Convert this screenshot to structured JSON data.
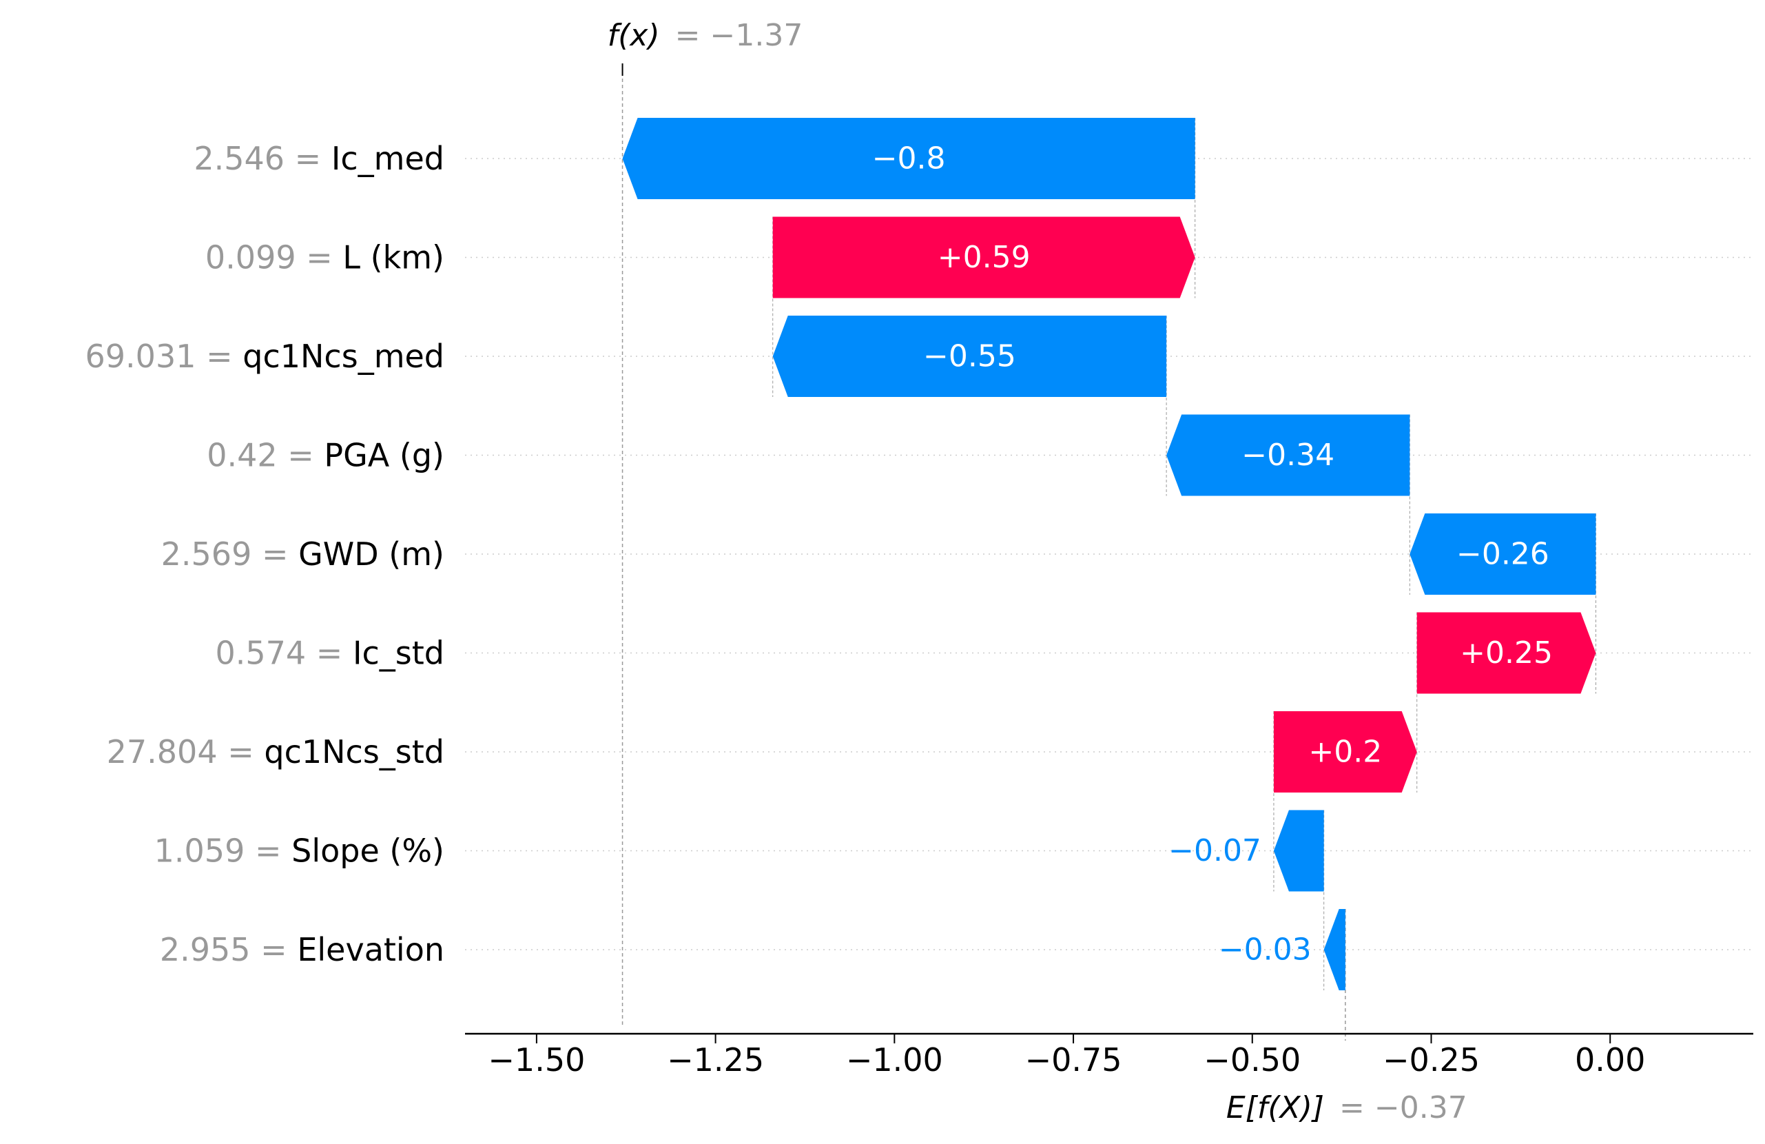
{
  "chart_data": {
    "type": "waterfall",
    "title": "",
    "xlabel": "",
    "ylabel": "",
    "xlim": [
      -1.6,
      0.2
    ],
    "xticks": [
      -1.5,
      -1.25,
      -1.0,
      -0.75,
      -0.5,
      -0.25,
      0.0
    ],
    "xtick_labels": [
      "−1.50",
      "−1.25",
      "−1.00",
      "−0.75",
      "−0.50",
      "−0.25",
      "0.00"
    ],
    "base_value": -0.37,
    "output_value": -1.37,
    "fx_label": "f(x)",
    "fx_value_text": "= −1.37",
    "efx_label": "E[f(X)]",
    "efx_value_text": "= −0.37",
    "features": [
      {
        "name": "Ic_med",
        "value": "2.546",
        "contribution": -0.8,
        "label": "−0.8"
      },
      {
        "name": "L (km)",
        "value": "0.099",
        "contribution": 0.59,
        "label": "+0.59"
      },
      {
        "name": "qc1Ncs_med",
        "value": "69.031",
        "contribution": -0.55,
        "label": "−0.55"
      },
      {
        "name": "PGA (g)",
        "value": "0.42",
        "contribution": -0.34,
        "label": "−0.34"
      },
      {
        "name": "GWD (m)",
        "value": "2.569",
        "contribution": -0.26,
        "label": "−0.26"
      },
      {
        "name": "Ic_std",
        "value": "0.574",
        "contribution": 0.25,
        "label": "+0.25"
      },
      {
        "name": "qc1Ncs_std",
        "value": "27.804",
        "contribution": 0.2,
        "label": "+0.2"
      },
      {
        "name": "Slope (%)",
        "value": "1.059",
        "contribution": -0.07,
        "label": "−0.07"
      },
      {
        "name": "Elevation",
        "value": "2.955",
        "contribution": -0.03,
        "label": "−0.03"
      }
    ],
    "colors": {
      "positive": "#ff0051",
      "negative": "#008bfb",
      "muted": "#999999",
      "axis": "#000000"
    }
  }
}
